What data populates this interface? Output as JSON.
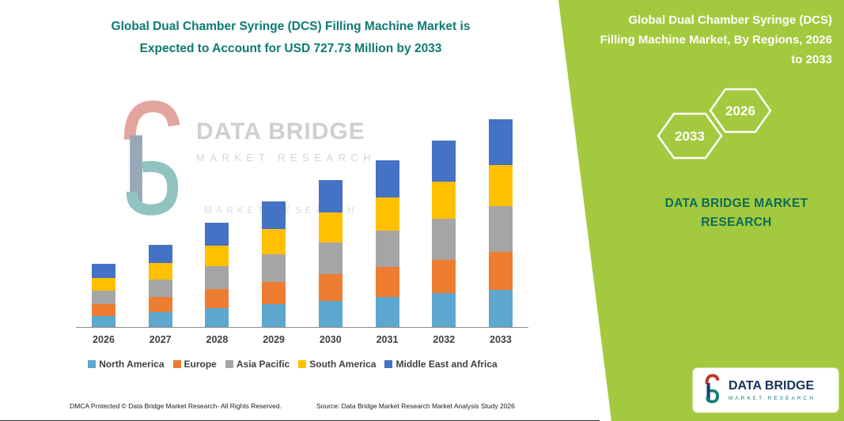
{
  "header": {
    "left_title_line1": "Global Dual Chamber Syringe (DCS) Filling Machine Market is",
    "left_title_line2": "Expected to Account for USD 727.73 Million by 2033"
  },
  "right_panel": {
    "title": "Global Dual Chamber Syringe (DCS) Filling Machine Market, By Regions, 2026 to 2033",
    "hexagon_back_year": "2033",
    "hexagon_front_year": "2026",
    "brand_caption": "DATA BRIDGE MARKET RESEARCH",
    "panel_green": "#a3c93e",
    "caption_teal": "#0c6b5a"
  },
  "watermark": {
    "title": "DATA BRIDGE",
    "subtitle": "MARKET RESEARCH",
    "faint_line": "MARKET RESEARCH"
  },
  "logo_card": {
    "title": "DATA BRIDGE",
    "subtitle": "MARKET RESEARCH"
  },
  "footer": {
    "dmca": "DMCA Protected © Data Bridge Market Research-  All Rights Reserved.",
    "source": "Source: Data Bridge Market Research  Market Analysis Study 2026"
  },
  "colors": {
    "title_teal": "#0e7b6f",
    "axis_gray": "#8c8c8c"
  },
  "chart_data": {
    "type": "bar",
    "stacked": true,
    "title": "Global Dual Chamber Syringe (DCS) Filling Machine Market is Expected to Account for USD 727.73 Million by 2033",
    "unit": "USD Million",
    "categories": [
      "2026",
      "2027",
      "2028",
      "2029",
      "2030",
      "2031",
      "2032",
      "2033"
    ],
    "series": [
      {
        "name": "North America",
        "color": "#5EA7CF",
        "values": [
          40,
          52,
          66,
          79,
          92,
          105,
          118,
          131
        ]
      },
      {
        "name": "Europe",
        "color": "#ED7D31",
        "values": [
          40,
          52,
          66,
          79,
          92,
          105,
          118,
          131
        ]
      },
      {
        "name": "Asia Pacific",
        "color": "#A5A5A5",
        "values": [
          48,
          63,
          80,
          97,
          113,
          128,
          143,
          160
        ]
      },
      {
        "name": "South America",
        "color": "#FFC000",
        "values": [
          44,
          58,
          73,
          88,
          103,
          116,
          131,
          146
        ]
      },
      {
        "name": "Middle East and Africa",
        "color": "#4472C4",
        "values": [
          48,
          63,
          80,
          96,
          113,
          128,
          143,
          159.73
        ]
      }
    ],
    "totals": [
      220,
      288,
      365,
      439,
      513,
      582,
      653,
      727.73
    ],
    "ylim": [
      0,
      760
    ],
    "xlabel": "",
    "ylabel": "",
    "grid": false,
    "legend_position": "bottom"
  }
}
